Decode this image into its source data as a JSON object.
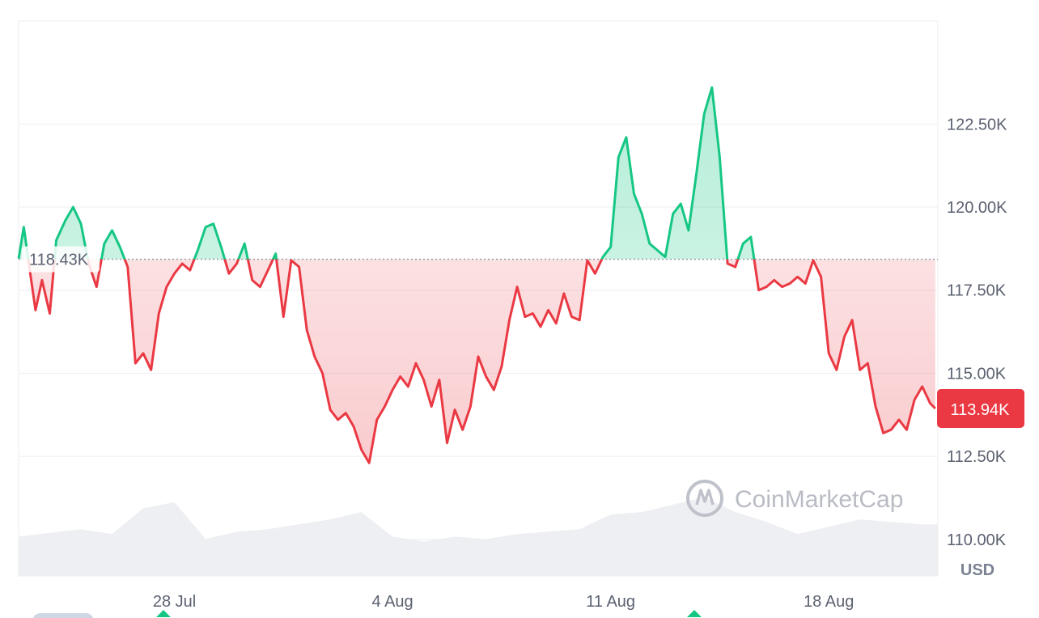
{
  "chart_data": {
    "type": "area",
    "title": "",
    "xlabel": "",
    "ylabel": "",
    "currency_label": "USD",
    "watermark": "CoinMarketCap",
    "ylim": [
      108900,
      125600
    ],
    "y_ticks": [
      {
        "value": 110000,
        "label": "110.00K"
      },
      {
        "value": 112500,
        "label": "112.50K"
      },
      {
        "value": 115000,
        "label": "115.00K"
      },
      {
        "value": 117500,
        "label": "117.50K"
      },
      {
        "value": 120000,
        "label": "120.00K"
      },
      {
        "value": 122500,
        "label": "122.50K"
      }
    ],
    "x_range": [
      "2025-07-23",
      "2025-08-21T12:00"
    ],
    "x_ticks": [
      {
        "date": "2025-07-28",
        "label": "28 Jul"
      },
      {
        "date": "2025-08-04",
        "label": "4 Aug"
      },
      {
        "date": "2025-08-11",
        "label": "11 Aug"
      },
      {
        "date": "2025-08-18",
        "label": "18 Aug"
      }
    ],
    "reference": {
      "value": 118430,
      "label": "118.43K"
    },
    "current": {
      "value": 113940,
      "label": "113.94K"
    },
    "colors": {
      "above": "#16c784",
      "below": "#ea3943",
      "current_badge": "#ea3943",
      "grid": "#eceef2",
      "volume": "#eeeff2"
    },
    "series": [
      {
        "values": [
          [
            "2025-07-23T00:00",
            118450
          ],
          [
            "2025-07-23T04:00",
            119400
          ],
          [
            "2025-07-23T09:00",
            118000
          ],
          [
            "2025-07-23T13:00",
            116900
          ],
          [
            "2025-07-23T18:00",
            117800
          ],
          [
            "2025-07-24T00:00",
            116800
          ],
          [
            "2025-07-24T05:00",
            119000
          ],
          [
            "2025-07-24T12:00",
            119600
          ],
          [
            "2025-07-24T18:00",
            120000
          ],
          [
            "2025-07-25T00:00",
            119500
          ],
          [
            "2025-07-25T06:00",
            118300
          ],
          [
            "2025-07-25T12:00",
            117600
          ],
          [
            "2025-07-25T18:00",
            118900
          ],
          [
            "2025-07-26T00:00",
            119300
          ],
          [
            "2025-07-26T06:00",
            118800
          ],
          [
            "2025-07-26T12:00",
            118200
          ],
          [
            "2025-07-26T18:00",
            115300
          ],
          [
            "2025-07-27T00:00",
            115600
          ],
          [
            "2025-07-27T06:00",
            115100
          ],
          [
            "2025-07-27T12:00",
            116800
          ],
          [
            "2025-07-27T18:00",
            117600
          ],
          [
            "2025-07-28T00:00",
            118000
          ],
          [
            "2025-07-28T06:00",
            118300
          ],
          [
            "2025-07-28T12:00",
            118100
          ],
          [
            "2025-07-28T18:00",
            118700
          ],
          [
            "2025-07-29T00:00",
            119400
          ],
          [
            "2025-07-29T06:00",
            119500
          ],
          [
            "2025-07-29T12:00",
            118800
          ],
          [
            "2025-07-29T18:00",
            118000
          ],
          [
            "2025-07-30T00:00",
            118300
          ],
          [
            "2025-07-30T06:00",
            118900
          ],
          [
            "2025-07-30T12:00",
            117800
          ],
          [
            "2025-07-30T18:00",
            117600
          ],
          [
            "2025-07-31T00:00",
            118100
          ],
          [
            "2025-07-31T06:00",
            118600
          ],
          [
            "2025-07-31T12:00",
            116700
          ],
          [
            "2025-07-31T18:00",
            118400
          ],
          [
            "2025-08-01T00:00",
            118200
          ],
          [
            "2025-08-01T06:00",
            116300
          ],
          [
            "2025-08-01T12:00",
            115500
          ],
          [
            "2025-08-01T18:00",
            115000
          ],
          [
            "2025-08-02T00:00",
            113900
          ],
          [
            "2025-08-02T06:00",
            113600
          ],
          [
            "2025-08-02T12:00",
            113800
          ],
          [
            "2025-08-02T18:00",
            113400
          ],
          [
            "2025-08-03T00:00",
            112700
          ],
          [
            "2025-08-03T06:00",
            112300
          ],
          [
            "2025-08-03T12:00",
            113600
          ],
          [
            "2025-08-03T18:00",
            114000
          ],
          [
            "2025-08-04T00:00",
            114500
          ],
          [
            "2025-08-04T06:00",
            114900
          ],
          [
            "2025-08-04T12:00",
            114600
          ],
          [
            "2025-08-04T18:00",
            115300
          ],
          [
            "2025-08-05T00:00",
            114800
          ],
          [
            "2025-08-05T06:00",
            114000
          ],
          [
            "2025-08-05T12:00",
            114800
          ],
          [
            "2025-08-05T18:00",
            112900
          ],
          [
            "2025-08-06T00:00",
            113900
          ],
          [
            "2025-08-06T06:00",
            113300
          ],
          [
            "2025-08-06T12:00",
            114000
          ],
          [
            "2025-08-06T18:00",
            115500
          ],
          [
            "2025-08-07T00:00",
            114900
          ],
          [
            "2025-08-07T06:00",
            114500
          ],
          [
            "2025-08-07T12:00",
            115200
          ],
          [
            "2025-08-07T18:00",
            116600
          ],
          [
            "2025-08-08T00:00",
            117600
          ],
          [
            "2025-08-08T06:00",
            116700
          ],
          [
            "2025-08-08T12:00",
            116800
          ],
          [
            "2025-08-08T18:00",
            116400
          ],
          [
            "2025-08-09T00:00",
            116900
          ],
          [
            "2025-08-09T06:00",
            116500
          ],
          [
            "2025-08-09T12:00",
            117400
          ],
          [
            "2025-08-09T18:00",
            116700
          ],
          [
            "2025-08-10T00:00",
            116600
          ],
          [
            "2025-08-10T06:00",
            118400
          ],
          [
            "2025-08-10T12:00",
            118000
          ],
          [
            "2025-08-10T18:00",
            118500
          ],
          [
            "2025-08-11T00:00",
            118800
          ],
          [
            "2025-08-11T06:00",
            121500
          ],
          [
            "2025-08-11T12:00",
            122100
          ],
          [
            "2025-08-11T18:00",
            120400
          ],
          [
            "2025-08-12T00:00",
            119800
          ],
          [
            "2025-08-12T06:00",
            118900
          ],
          [
            "2025-08-12T12:00",
            118700
          ],
          [
            "2025-08-12T18:00",
            118500
          ],
          [
            "2025-08-13T00:00",
            119800
          ],
          [
            "2025-08-13T06:00",
            120100
          ],
          [
            "2025-08-13T12:00",
            119300
          ],
          [
            "2025-08-13T18:00",
            121000
          ],
          [
            "2025-08-14T00:00",
            122800
          ],
          [
            "2025-08-14T06:00",
            123600
          ],
          [
            "2025-08-14T12:00",
            121500
          ],
          [
            "2025-08-14T18:00",
            118300
          ],
          [
            "2025-08-15T00:00",
            118200
          ],
          [
            "2025-08-15T06:00",
            118900
          ],
          [
            "2025-08-15T12:00",
            119100
          ],
          [
            "2025-08-15T18:00",
            117500
          ],
          [
            "2025-08-16T00:00",
            117600
          ],
          [
            "2025-08-16T06:00",
            117800
          ],
          [
            "2025-08-16T12:00",
            117600
          ],
          [
            "2025-08-16T18:00",
            117700
          ],
          [
            "2025-08-17T00:00",
            117900
          ],
          [
            "2025-08-17T06:00",
            117700
          ],
          [
            "2025-08-17T12:00",
            118400
          ],
          [
            "2025-08-17T18:00",
            117900
          ],
          [
            "2025-08-18T00:00",
            115600
          ],
          [
            "2025-08-18T06:00",
            115100
          ],
          [
            "2025-08-18T12:00",
            116100
          ],
          [
            "2025-08-18T18:00",
            116600
          ],
          [
            "2025-08-19T00:00",
            115100
          ],
          [
            "2025-08-19T06:00",
            115300
          ],
          [
            "2025-08-19T12:00",
            114000
          ],
          [
            "2025-08-19T18:00",
            113200
          ],
          [
            "2025-08-20T00:00",
            113300
          ],
          [
            "2025-08-20T06:00",
            113600
          ],
          [
            "2025-08-20T12:00",
            113300
          ],
          [
            "2025-08-20T18:00",
            114200
          ],
          [
            "2025-08-21T00:00",
            114600
          ],
          [
            "2025-08-21T06:00",
            114100
          ],
          [
            "2025-08-21T10:00",
            113940
          ]
        ]
      }
    ],
    "volume": [
      [
        "2025-07-23",
        0.32
      ],
      [
        "2025-07-24",
        0.35
      ],
      [
        "2025-07-25",
        0.38
      ],
      [
        "2025-07-26",
        0.34
      ],
      [
        "2025-07-27",
        0.55
      ],
      [
        "2025-07-28",
        0.6
      ],
      [
        "2025-07-29",
        0.3
      ],
      [
        "2025-07-30",
        0.36
      ],
      [
        "2025-07-31",
        0.38
      ],
      [
        "2025-08-01",
        0.42
      ],
      [
        "2025-08-02",
        0.46
      ],
      [
        "2025-08-03",
        0.52
      ],
      [
        "2025-08-04",
        0.32
      ],
      [
        "2025-08-05",
        0.28
      ],
      [
        "2025-08-06",
        0.32
      ],
      [
        "2025-08-07",
        0.3
      ],
      [
        "2025-08-08",
        0.34
      ],
      [
        "2025-08-09",
        0.36
      ],
      [
        "2025-08-10",
        0.38
      ],
      [
        "2025-08-11",
        0.5
      ],
      [
        "2025-08-12",
        0.52
      ],
      [
        "2025-08-13",
        0.58
      ],
      [
        "2025-08-14",
        0.64
      ],
      [
        "2025-08-15",
        0.52
      ],
      [
        "2025-08-16",
        0.44
      ],
      [
        "2025-08-17",
        0.34
      ],
      [
        "2025-08-18",
        0.4
      ],
      [
        "2025-08-19",
        0.46
      ],
      [
        "2025-08-20",
        0.44
      ],
      [
        "2025-08-21",
        0.42
      ]
    ]
  }
}
